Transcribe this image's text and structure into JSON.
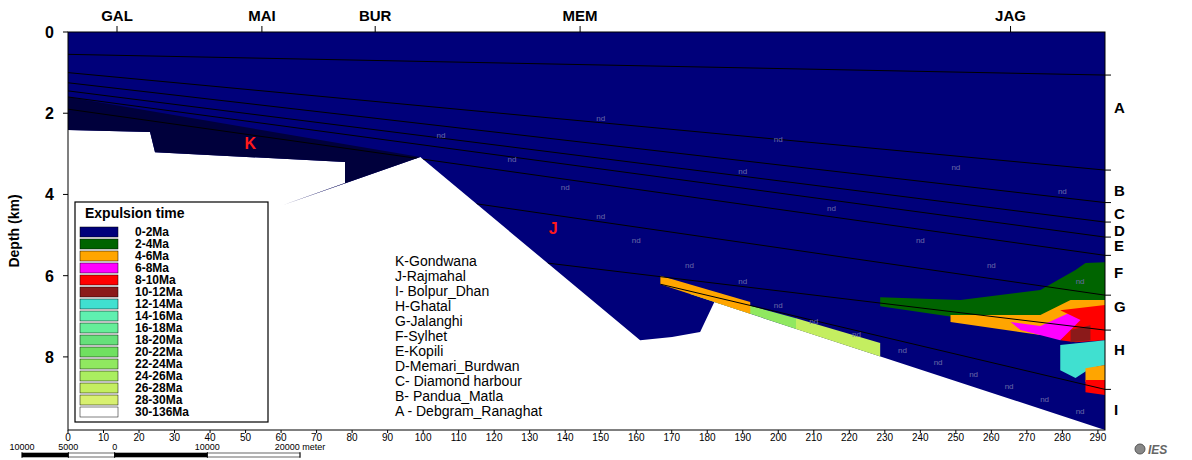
{
  "chart_data": {
    "type": "cross-section",
    "y_label": "Depth (km)",
    "xlim": [
      0,
      292
    ],
    "xticks": [
      0,
      10,
      20,
      30,
      40,
      50,
      60,
      70,
      80,
      90,
      100,
      110,
      120,
      130,
      140,
      150,
      160,
      170,
      180,
      190,
      200,
      210,
      220,
      230,
      240,
      250,
      260,
      270,
      280,
      290
    ],
    "ylim": [
      0,
      9.8
    ],
    "yticks": [
      0,
      2,
      4,
      6,
      8
    ],
    "wells": [
      {
        "label": "GAL",
        "x": 13.8
      },
      {
        "label": "MAI",
        "x": 54.6
      },
      {
        "label": "BUR",
        "x": 86.5
      },
      {
        "label": "MEM",
        "x": 144.2
      },
      {
        "label": "JAG",
        "x": 265.4
      }
    ],
    "right_labels": [
      {
        "label": "A",
        "depth": 1.87
      },
      {
        "label": "B",
        "depth": 3.92
      },
      {
        "label": "C",
        "depth": 4.48
      },
      {
        "label": "D",
        "depth": 4.9
      },
      {
        "label": "E",
        "depth": 5.27
      },
      {
        "label": "F",
        "depth": 5.94
      },
      {
        "label": "G",
        "depth": 6.77
      },
      {
        "label": "H",
        "depth": 7.83
      },
      {
        "label": "I",
        "depth": 9.3
      }
    ],
    "plot_labels": [
      {
        "label": "K",
        "x": 51.3,
        "depth": 2.73
      },
      {
        "label": "J",
        "x": 136.6,
        "depth": 4.83
      }
    ],
    "layer_key": [
      "K-Gondwana",
      "J-Rajmahal",
      "I- Bolpur_Dhan",
      "H-Ghatal",
      "G-Jalanghi",
      "F-Sylhet",
      "E-Kopili",
      "D-Memari_Burdwan",
      "C- Diamond harbour",
      "B- Pandua_Matla",
      "A - Debgram_Ranaghat"
    ],
    "legend_title": "Expulsion time",
    "legend": "lower left",
    "legend_items": [
      {
        "label": "0-2Ma",
        "color": "#00007a"
      },
      {
        "label": "2-4Ma",
        "color": "#006400"
      },
      {
        "label": "4-6Ma",
        "color": "#ffa500"
      },
      {
        "label": "6-8Ma",
        "color": "#ff00ff"
      },
      {
        "label": "8-10Ma",
        "color": "#ff0000"
      },
      {
        "label": "10-12Ma",
        "color": "#8b1a1a"
      },
      {
        "label": "12-14Ma",
        "color": "#40e0d0"
      },
      {
        "label": "14-16Ma",
        "color": "#5ff0b0"
      },
      {
        "label": "16-18Ma",
        "color": "#66ee99"
      },
      {
        "label": "18-20Ma",
        "color": "#66e07a"
      },
      {
        "label": "20-22Ma",
        "color": "#70e060"
      },
      {
        "label": "22-24Ma",
        "color": "#90e860"
      },
      {
        "label": "24-26Ma",
        "color": "#aaee60"
      },
      {
        "label": "26-28Ma",
        "color": "#c4ee60"
      },
      {
        "label": "28-30Ma",
        "color": "#d8f070"
      },
      {
        "label": "30-136Ma",
        "color": "#ffffff"
      }
    ],
    "regions": [
      {
        "class": "0-2Ma",
        "points": [
          [
            0,
            0
          ],
          [
            292,
            0
          ],
          [
            292,
            9.8
          ],
          [
            182,
            6.65
          ],
          [
            178,
            7.39
          ],
          [
            170.1,
            7.51
          ],
          [
            161.1,
            7.59
          ],
          [
            99.2,
            3.08
          ],
          [
            60.6,
            4.26
          ],
          [
            78,
            3.72
          ],
          [
            78,
            3.2
          ],
          [
            24.5,
            2.96
          ],
          [
            23.1,
            2.46
          ],
          [
            0,
            2.41
          ]
        ]
      },
      {
        "class": "0-2Ma",
        "color": "#00003c",
        "points": [
          [
            0,
            1.6
          ],
          [
            99.2,
            3.08
          ],
          [
            60.6,
            4.26
          ],
          [
            78,
            3.72
          ],
          [
            78,
            3.2
          ],
          [
            24.5,
            2.96
          ],
          [
            23.1,
            2.46
          ],
          [
            0,
            2.41
          ]
        ]
      },
      {
        "class": "22-24Ma",
        "points": [
          [
            175.2,
            6.33
          ],
          [
            205,
            7.05
          ],
          [
            205,
            7.31
          ],
          [
            175.2,
            6.45
          ]
        ]
      },
      {
        "class": "26-28Ma",
        "points": [
          [
            205,
            7.05
          ],
          [
            228.7,
            7.66
          ],
          [
            228.7,
            7.99
          ],
          [
            205,
            7.31
          ]
        ]
      },
      {
        "class": "4-6Ma",
        "points": [
          [
            166.8,
            6.0
          ],
          [
            192.1,
            6.65
          ],
          [
            192.1,
            6.94
          ],
          [
            166.8,
            6.21
          ]
        ]
      },
      {
        "class": "2-4Ma",
        "points": [
          [
            228.7,
            6.53
          ],
          [
            251.3,
            6.6
          ],
          [
            273.8,
            6.35
          ],
          [
            283.7,
            5.86
          ],
          [
            286.5,
            5.69
          ],
          [
            292,
            5.67
          ],
          [
            292,
            6.6
          ],
          [
            273.8,
            6.97
          ],
          [
            251.3,
            7.04
          ],
          [
            228.7,
            6.75
          ]
        ]
      },
      {
        "class": "4-6Ma",
        "points": [
          [
            248.5,
            6.97
          ],
          [
            273.8,
            6.97
          ],
          [
            282.3,
            6.6
          ],
          [
            292,
            6.6
          ],
          [
            292,
            6.97
          ],
          [
            282.3,
            7.09
          ],
          [
            273.8,
            7.46
          ],
          [
            248.5,
            7.14
          ]
        ]
      },
      {
        "class": "6-8Ma",
        "points": [
          [
            265.4,
            7.14
          ],
          [
            273.8,
            7.24
          ],
          [
            282.3,
            6.9
          ],
          [
            286.5,
            7.09
          ],
          [
            279.4,
            7.59
          ],
          [
            268.2,
            7.34
          ]
        ]
      },
      {
        "class": "8-10Ma",
        "points": [
          [
            279.4,
            6.85
          ],
          [
            292,
            6.72
          ],
          [
            292,
            7.59
          ],
          [
            283.7,
            7.64
          ],
          [
            279.4,
            7.59
          ],
          [
            285.1,
            7.09
          ]
        ]
      },
      {
        "class": "10-12Ma",
        "points": [
          [
            282.3,
            7.34
          ],
          [
            287.9,
            7.22
          ],
          [
            287.9,
            7.59
          ],
          [
            282.3,
            7.64
          ]
        ]
      },
      {
        "class": "12-14Ma",
        "points": [
          [
            279.4,
            7.71
          ],
          [
            292,
            7.59
          ],
          [
            292,
            8.2
          ],
          [
            287.9,
            8.28
          ],
          [
            283.7,
            8.52
          ],
          [
            279.4,
            8.33
          ]
        ]
      },
      {
        "class": "4-6Ma",
        "points": [
          [
            286.5,
            8.28
          ],
          [
            292,
            8.2
          ],
          [
            292,
            8.57
          ],
          [
            286.5,
            8.62
          ]
        ]
      },
      {
        "class": "8-10Ma",
        "points": [
          [
            286.5,
            8.57
          ],
          [
            292,
            8.57
          ],
          [
            292,
            8.94
          ],
          [
            286.5,
            8.87
          ]
        ]
      }
    ],
    "horizons": [
      [
        [
          0,
          0.55
        ],
        [
          292,
          1.06
        ]
      ],
      [
        [
          0,
          1.0
        ],
        [
          292,
          3.4
        ]
      ],
      [
        [
          0,
          1.25
        ],
        [
          292,
          4.2
        ]
      ],
      [
        [
          0,
          1.45
        ],
        [
          292,
          4.68
        ]
      ],
      [
        [
          0,
          1.6
        ],
        [
          292,
          5.05
        ]
      ],
      [
        [
          0,
          1.9
        ],
        [
          292,
          5.5
        ]
      ],
      [
        [
          115,
          4.23
        ],
        [
          292,
          6.48
        ]
      ],
      [
        [
          135,
          5.69
        ],
        [
          292,
          7.34
        ]
      ],
      [
        [
          166.8,
          6.21
        ],
        [
          292,
          8.8
        ]
      ]
    ],
    "nd_labels": {
      "text": "nd",
      "points": [
        [
          105,
          2.6
        ],
        [
          125,
          3.2
        ],
        [
          140,
          3.9
        ],
        [
          150,
          4.6
        ],
        [
          160,
          5.2
        ],
        [
          175,
          5.8
        ],
        [
          190,
          6.2
        ],
        [
          200,
          6.8
        ],
        [
          210,
          7.2
        ],
        [
          222,
          7.5
        ],
        [
          235,
          7.9
        ],
        [
          245,
          8.2
        ],
        [
          255,
          8.5
        ],
        [
          265,
          8.8
        ],
        [
          275,
          9.1
        ],
        [
          285,
          9.4
        ],
        [
          190,
          3.5
        ],
        [
          215,
          4.4
        ],
        [
          240,
          5.2
        ],
        [
          260,
          5.8
        ],
        [
          285,
          6.2
        ],
        [
          150,
          2.2
        ],
        [
          200,
          2.7
        ],
        [
          250,
          3.4
        ],
        [
          280,
          4.0
        ]
      ]
    },
    "scale_bar": {
      "lim": [
        -10000,
        20000
      ],
      "ticks": [
        {
          "value": -10000,
          "label": "10000"
        },
        {
          "value": -5000,
          "label": "5000"
        },
        0,
        10000,
        {
          "value": 20000,
          "label": "20000 meter"
        }
      ]
    },
    "logo": "IES"
  }
}
